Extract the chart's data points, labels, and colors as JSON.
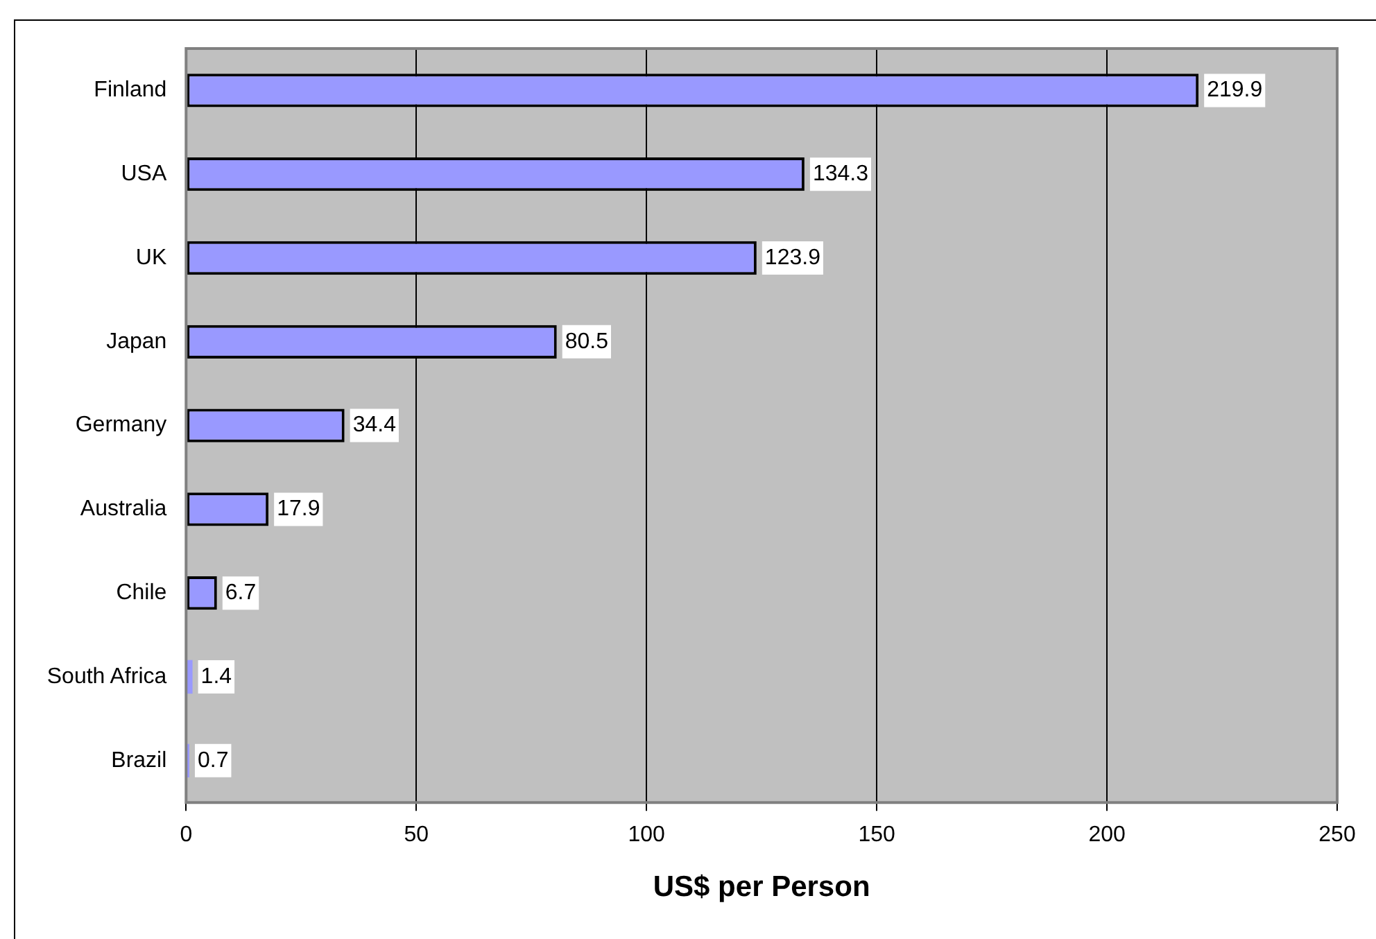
{
  "chart_data": {
    "type": "bar",
    "orientation": "horizontal",
    "xlabel": "US$ per Person",
    "categories": [
      "Finland",
      "USA",
      "UK",
      "Japan",
      "Germany",
      "Australia",
      "Chile",
      "South Africa",
      "Brazil"
    ],
    "values": [
      219.9,
      134.3,
      123.9,
      80.5,
      34.4,
      17.9,
      6.7,
      1.4,
      0.7
    ],
    "color": "#9999ff",
    "xlim": [
      0,
      250
    ],
    "xticks": [
      0,
      50,
      100,
      150,
      200,
      250
    ],
    "grid": "x",
    "data_labels": true,
    "legend": false
  }
}
